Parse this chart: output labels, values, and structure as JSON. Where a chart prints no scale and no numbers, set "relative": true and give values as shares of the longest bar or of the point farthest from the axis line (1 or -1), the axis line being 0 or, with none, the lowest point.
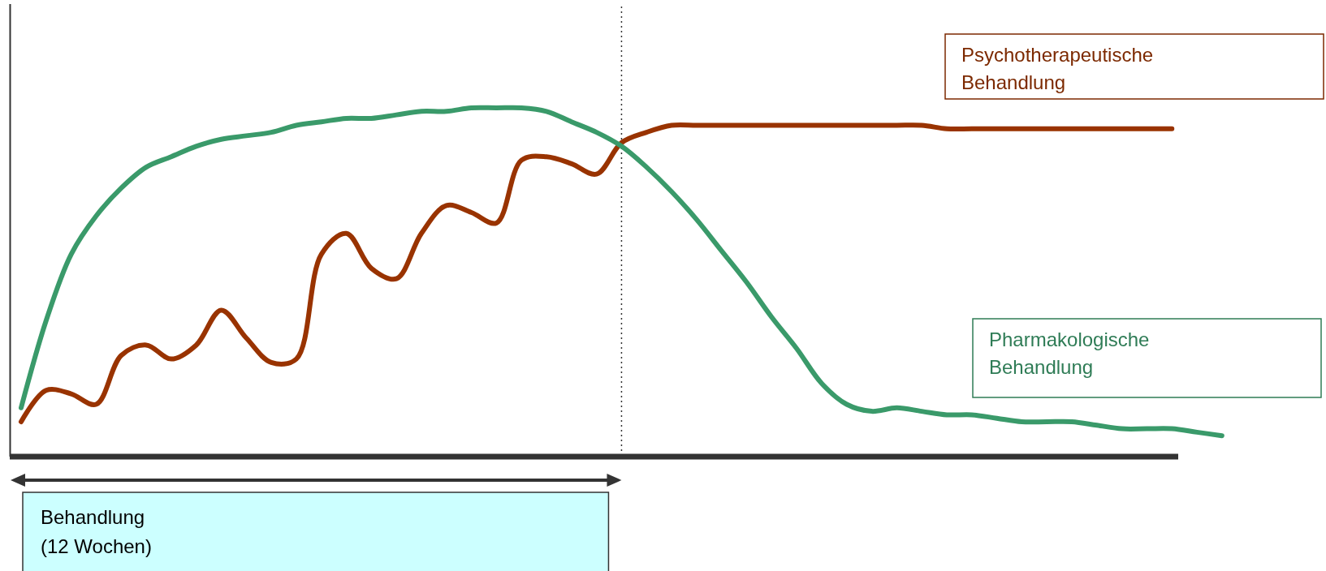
{
  "chart_data": {
    "type": "line",
    "relative": true,
    "categories": [
      null,
      null,
      null,
      null,
      null,
      null,
      null,
      null,
      null,
      null,
      null,
      null,
      null,
      null,
      null,
      null,
      null,
      null,
      null,
      null,
      null,
      null,
      null,
      null,
      null,
      null,
      null,
      null,
      null,
      null,
      null,
      null,
      null,
      null,
      null,
      null,
      null,
      null,
      null,
      null,
      null,
      null,
      null,
      null,
      null,
      null,
      null,
      null,
      null
    ],
    "series": [
      {
        "name": "Psychotherapeutische Behandlung",
        "color": "#993300",
        "values": [
          0.1,
          0.19,
          0.18,
          0.15,
          0.29,
          0.32,
          0.28,
          0.32,
          0.42,
          0.34,
          0.27,
          0.28,
          0.58,
          0.64,
          0.54,
          0.51,
          0.64,
          0.72,
          0.7,
          0.67,
          0.85,
          0.86,
          0.84,
          0.81,
          0.9,
          0.93,
          0.95,
          0.95,
          0.95,
          0.95,
          0.95,
          0.95,
          0.95,
          0.95,
          0.95,
          0.95,
          0.95,
          0.94,
          0.94,
          0.94,
          0.94,
          0.94,
          0.94,
          0.94,
          0.94,
          0.94,
          0.94,
          null,
          null
        ]
      },
      {
        "name": "Pharmakologische Behandlung",
        "color": "#3a9a6a",
        "values": [
          0.14,
          0.39,
          0.58,
          0.69,
          0.77,
          0.83,
          0.86,
          0.89,
          0.91,
          0.92,
          0.93,
          0.95,
          0.96,
          0.97,
          0.97,
          0.98,
          0.99,
          0.99,
          1.0,
          1.0,
          1.0,
          0.99,
          0.96,
          0.93,
          0.89,
          0.83,
          0.76,
          0.68,
          0.59,
          0.5,
          0.4,
          0.31,
          0.21,
          0.15,
          0.13,
          0.14,
          0.13,
          0.12,
          0.12,
          0.11,
          0.1,
          0.1,
          0.1,
          0.09,
          0.08,
          0.08,
          0.08,
          0.07,
          0.06
        ]
      }
    ],
    "annotations": [
      "Behandlung\n(12 Wochen)"
    ],
    "marker": "none",
    "line_style": "solid"
  }
}
